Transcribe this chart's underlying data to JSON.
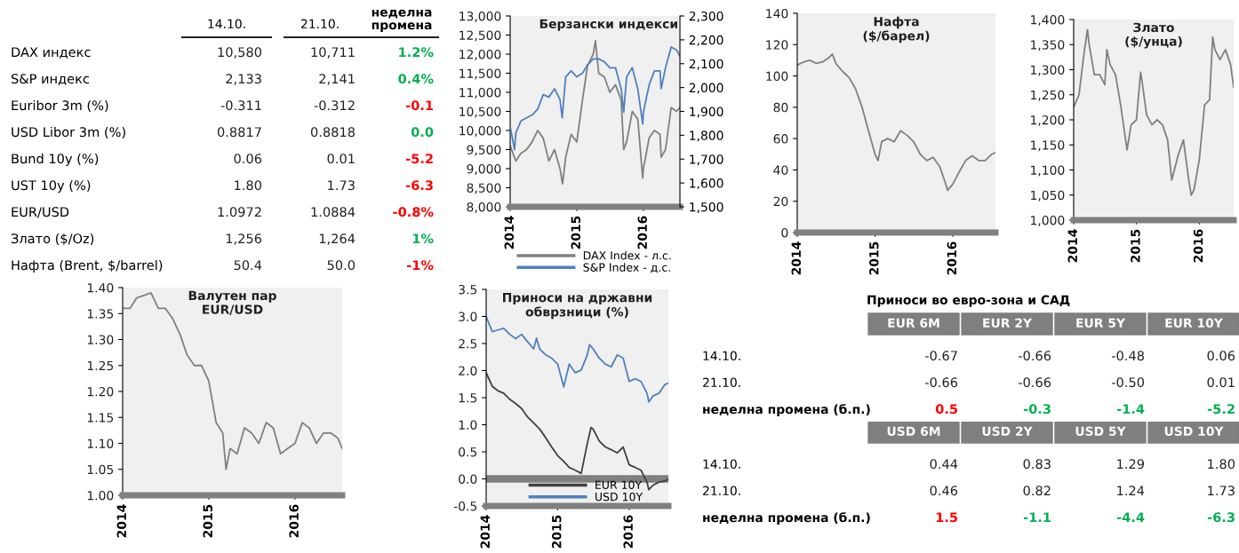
{
  "chart_data": [
    {
      "type": "other",
      "categories": [
        "14.10.",
        "21.10.",
        "неделна промена"
      ],
      "series": [
        {
          "name": "DAX индекс",
          "values": [
            10580,
            10711,
            1.2
          ],
          "value_labels": [
            "10,580",
            "10,711",
            "1.2%"
          ],
          "colors": [
            "#222222",
            "#222222",
            "#00b050"
          ]
        },
        {
          "name": "S&P индекс",
          "values": [
            2133,
            2141,
            0.4
          ],
          "value_labels": [
            "2,133",
            "2,141",
            "0.4%"
          ],
          "colors": [
            "#222222",
            "#222222",
            "#00b050"
          ]
        },
        {
          "name": "Euribor 3m (%)",
          "values": [
            -0.311,
            -0.312,
            -0.1
          ],
          "value_labels": [
            "-0.311",
            "-0.312",
            "-0.1"
          ],
          "colors": [
            "#222222",
            "#222222",
            "#ff0000"
          ]
        },
        {
          "name": "USD Libor 3m (%)",
          "values": [
            0.8817,
            0.8818,
            0.0
          ],
          "value_labels": [
            "0.8817",
            "0.8818",
            "0.0"
          ],
          "colors": [
            "#222222",
            "#222222",
            "#00b050"
          ]
        },
        {
          "name": "Bund 10y (%)",
          "values": [
            0.06,
            0.01,
            -5.2
          ],
          "value_labels": [
            "0.06",
            "0.01",
            "-5.2"
          ],
          "colors": [
            "#222222",
            "#222222",
            "#ff0000"
          ]
        },
        {
          "name": "UST 10y (%)",
          "values": [
            1.8,
            1.73,
            -6.3
          ],
          "value_labels": [
            "1.80",
            "1.73",
            "-6.3"
          ],
          "colors": [
            "#222222",
            "#222222",
            "#ff0000"
          ]
        },
        {
          "name": "EUR/USD",
          "values": [
            1.0972,
            1.0884,
            -0.8
          ],
          "value_labels": [
            "1.0972",
            "1.0884",
            "-0.8%"
          ],
          "colors": [
            "#222222",
            "#222222",
            "#ff0000"
          ]
        },
        {
          "name": "Злато ($/Oz)",
          "values": [
            1256,
            1264,
            1
          ],
          "value_labels": [
            "1,256",
            "1,264",
            "1%"
          ],
          "colors": [
            "#222222",
            "#222222",
            "#00b050"
          ]
        },
        {
          "name": "Нафта (Brent, $/barrel)",
          "values": [
            50.4,
            50.0,
            -1
          ],
          "value_labels": [
            "50.4",
            "50.0",
            "-1%"
          ],
          "colors": [
            "#222222",
            "#222222",
            "#ff0000"
          ]
        }
      ]
    },
    {
      "type": "line",
      "title": "Берзански индекси",
      "legend": "bottom",
      "xlim": [
        "2014-01-01",
        "2016-07-19"
      ],
      "xticks": [
        "2014",
        "2015",
        "2016"
      ],
      "ylim": [
        8000,
        13000
      ],
      "yticks": [
        {
          "value": 8000,
          "label": "8,000"
        },
        {
          "value": 8500,
          "label": "8,500"
        },
        {
          "value": 9000,
          "label": "9,000"
        },
        {
          "value": 9500,
          "label": "9,500"
        },
        {
          "value": 10000,
          "label": "10,000"
        },
        {
          "value": 10500,
          "label": "10,500"
        },
        {
          "value": 11000,
          "label": "11,000"
        },
        {
          "value": 11500,
          "label": "11,500"
        },
        {
          "value": 12000,
          "label": "12,000"
        },
        {
          "value": 12500,
          "label": "12,500"
        },
        {
          "value": 13000,
          "label": "13,000"
        }
      ],
      "y2lim": [
        1500,
        2300
      ],
      "y2ticks": [
        {
          "value": 1500,
          "label": "1,500"
        },
        {
          "value": 1600,
          "label": "1,600"
        },
        {
          "value": 1700,
          "label": "1,700"
        },
        {
          "value": 1800,
          "label": "1,800"
        },
        {
          "value": 1900,
          "label": "1,900"
        },
        {
          "value": 2000,
          "label": "2,000"
        },
        {
          "value": 2100,
          "label": "2,100"
        },
        {
          "value": 2200,
          "label": "2,200"
        },
        {
          "value": 2300,
          "label": "2,300"
        }
      ],
      "series": [
        {
          "name": "DAX Index - л.с.",
          "color": "#808080",
          "x": [
            "2014-01-01",
            "2014-02-01",
            "2014-03-01",
            "2014-04-01",
            "2014-05-01",
            "2014-06-01",
            "2014-07-01",
            "2014-08-01",
            "2014-09-01",
            "2014-10-01",
            "2014-10-15",
            "2014-11-01",
            "2014-12-01",
            "2015-01-01",
            "2015-02-01",
            "2015-03-01",
            "2015-04-01",
            "2015-04-13",
            "2015-05-01",
            "2015-06-01",
            "2015-07-01",
            "2015-08-01",
            "2015-09-01",
            "2015-09-15",
            "2015-10-01",
            "2015-11-01",
            "2015-12-01",
            "2015-12-28",
            "2016-01-01",
            "2016-02-01",
            "2016-03-01",
            "2016-04-01",
            "2016-04-07",
            "2016-05-01",
            "2016-06-01",
            "2016-07-01",
            "2016-07-19"
          ],
          "values": [
            9600,
            9200,
            9400,
            9500,
            9700,
            10000,
            9800,
            9200,
            9500,
            9000,
            8600,
            9300,
            9900,
            9700,
            10800,
            11700,
            12000,
            12350,
            11500,
            11400,
            11000,
            11200,
            10800,
            9500,
            9700,
            10500,
            10300,
            8750,
            9000,
            9800,
            10000,
            9900,
            9300,
            9500,
            10600,
            10500,
            10600
          ]
        },
        {
          "name": "S&P Index - д.с.",
          "color": "#4f81bd",
          "axis": "y2",
          "x": [
            "2014-01-01",
            "2014-01-25",
            "2014-02-01",
            "2014-03-01",
            "2014-04-01",
            "2014-05-01",
            "2014-06-01",
            "2014-07-01",
            "2014-08-01",
            "2014-09-01",
            "2014-10-01",
            "2014-10-13",
            "2014-11-01",
            "2014-12-01",
            "2015-01-01",
            "2015-02-01",
            "2015-03-01",
            "2015-04-01",
            "2015-05-01",
            "2015-06-01",
            "2015-07-01",
            "2015-08-01",
            "2015-09-01",
            "2015-09-15",
            "2015-10-01",
            "2015-11-01",
            "2015-12-01",
            "2015-12-28",
            "2016-01-01",
            "2016-02-01",
            "2016-03-01",
            "2016-04-01",
            "2016-04-07",
            "2016-05-01",
            "2016-06-01",
            "2016-07-01",
            "2016-07-19"
          ],
          "values": [
            1836,
            1740,
            1810,
            1860,
            1873,
            1885,
            1910,
            1970,
            1960,
            1995,
            1950,
            1873,
            2045,
            2070,
            2045,
            2060,
            2095,
            2120,
            2120,
            2108,
            2083,
            2083,
            1995,
            1897,
            2045,
            2083,
            1995,
            1847,
            1897,
            2010,
            2070,
            2070,
            1995,
            2083,
            2170,
            2157,
            2132
          ]
        }
      ]
    },
    {
      "type": "line",
      "title": "Нафта\n($/барел)",
      "xlim": [
        "2014-01-01",
        "2016-07-19"
      ],
      "xticks": [
        "2014",
        "2015",
        "2016"
      ],
      "ylim": [
        0,
        140
      ],
      "yticks": [
        0,
        20,
        40,
        60,
        80,
        100,
        120,
        140
      ],
      "series": [
        {
          "color": "#808080",
          "x": [
            "2014-01-01",
            "2014-02-01",
            "2014-03-01",
            "2014-04-01",
            "2014-05-01",
            "2014-06-01",
            "2014-06-15",
            "2014-07-01",
            "2014-08-01",
            "2014-09-01",
            "2014-10-01",
            "2014-11-01",
            "2014-12-01",
            "2015-01-01",
            "2015-01-15",
            "2015-02-01",
            "2015-03-01",
            "2015-04-01",
            "2015-05-01",
            "2015-06-01",
            "2015-07-01",
            "2015-08-01",
            "2015-09-01",
            "2015-10-01",
            "2015-11-01",
            "2015-12-01",
            "2015-12-07",
            "2016-01-01",
            "2016-02-01",
            "2016-03-01",
            "2016-04-01",
            "2016-05-01",
            "2016-06-01",
            "2016-07-01",
            "2016-07-19"
          ],
          "values": [
            107,
            109,
            110,
            108,
            109,
            112,
            114,
            108,
            103,
            99,
            92,
            80,
            65,
            50,
            46,
            58,
            60,
            58,
            65,
            62,
            58,
            50,
            46,
            48,
            42,
            30,
            27,
            31,
            39,
            46,
            49,
            46,
            46,
            50,
            51
          ]
        }
      ]
    },
    {
      "type": "line",
      "title": "Злато\n($/унца)",
      "xlim": [
        "2014-01-01",
        "2016-07-19"
      ],
      "xticks": [
        "2014",
        "2015",
        "2016"
      ],
      "ylim": [
        1000,
        1400
      ],
      "yticks": [
        {
          "value": 1000,
          "label": "1,000"
        },
        {
          "value": 1050,
          "label": "1,050"
        },
        {
          "value": 1100,
          "label": "1,100"
        },
        {
          "value": 1150,
          "label": "1,150"
        },
        {
          "value": 1200,
          "label": "1,200"
        },
        {
          "value": 1250,
          "label": "1,250"
        },
        {
          "value": 1300,
          "label": "1,300"
        },
        {
          "value": 1350,
          "label": "1,350"
        },
        {
          "value": 1400,
          "label": "1,400"
        }
      ],
      "series": [
        {
          "color": "#808080",
          "x": [
            "2014-01-01",
            "2014-02-01",
            "2014-03-01",
            "2014-03-22",
            "2014-04-01",
            "2014-05-01",
            "2014-06-01",
            "2014-07-01",
            "2014-07-13",
            "2014-08-01",
            "2014-09-01",
            "2014-10-01",
            "2014-11-07",
            "2014-12-01",
            "2015-01-01",
            "2015-01-25",
            "2015-02-01",
            "2015-03-01",
            "2015-04-01",
            "2015-05-01",
            "2015-06-01",
            "2015-07-01",
            "2015-07-25",
            "2015-09-01",
            "2015-10-01",
            "2015-11-01",
            "2015-11-15",
            "2015-12-01",
            "2016-01-01",
            "2016-02-01",
            "2016-03-01",
            "2016-03-19",
            "2016-04-01",
            "2016-05-01",
            "2016-06-01",
            "2016-07-01",
            "2016-07-19"
          ],
          "values": [
            1225,
            1250,
            1330,
            1380,
            1350,
            1290,
            1290,
            1270,
            1340,
            1310,
            1290,
            1230,
            1140,
            1190,
            1200,
            1295,
            1280,
            1210,
            1190,
            1200,
            1190,
            1160,
            1080,
            1130,
            1160,
            1080,
            1050,
            1060,
            1120,
            1230,
            1240,
            1365,
            1340,
            1320,
            1340,
            1310,
            1265
          ]
        }
      ]
    },
    {
      "type": "line",
      "title": "Валутен пар\nEUR/USD",
      "xlim": [
        "2014-01-01",
        "2016-07-19"
      ],
      "xticks": [
        "2014",
        "2015",
        "2016"
      ],
      "ylim": [
        1.0,
        1.4
      ],
      "yticks": [
        {
          "value": 1.0,
          "label": "1.00"
        },
        {
          "value": 1.05,
          "label": "1.05"
        },
        {
          "value": 1.1,
          "label": "1.10"
        },
        {
          "value": 1.15,
          "label": "1.15"
        },
        {
          "value": 1.2,
          "label": "1.20"
        },
        {
          "value": 1.25,
          "label": "1.25"
        },
        {
          "value": 1.3,
          "label": "1.30"
        },
        {
          "value": 1.35,
          "label": "1.35"
        },
        {
          "value": 1.4,
          "label": "1.40"
        }
      ],
      "series": [
        {
          "color": "#808080",
          "x": [
            "2014-01-01",
            "2014-02-01",
            "2014-03-01",
            "2014-04-01",
            "2014-05-01",
            "2014-06-01",
            "2014-07-01",
            "2014-08-01",
            "2014-09-01",
            "2014-10-01",
            "2014-11-01",
            "2014-12-01",
            "2015-01-01",
            "2015-02-01",
            "2015-03-01",
            "2015-03-15",
            "2015-04-01",
            "2015-05-01",
            "2015-06-01",
            "2015-07-01",
            "2015-08-01",
            "2015-09-01",
            "2015-10-01",
            "2015-11-01",
            "2015-12-01",
            "2016-01-01",
            "2016-02-01",
            "2016-03-01",
            "2016-04-01",
            "2016-05-01",
            "2016-06-01",
            "2016-07-01",
            "2016-07-19"
          ],
          "values": [
            1.36,
            1.36,
            1.38,
            1.385,
            1.39,
            1.36,
            1.36,
            1.34,
            1.31,
            1.27,
            1.25,
            1.25,
            1.22,
            1.14,
            1.12,
            1.05,
            1.09,
            1.08,
            1.13,
            1.12,
            1.1,
            1.14,
            1.13,
            1.08,
            1.09,
            1.1,
            1.14,
            1.13,
            1.1,
            1.12,
            1.12,
            1.11,
            1.09
          ]
        }
      ]
    },
    {
      "type": "line",
      "title": "Приноси на државни\nобврзници (%)",
      "legend": "bottom",
      "xlim": [
        "2014-01-01",
        "2016-07-19"
      ],
      "xticks": [
        "2014",
        "2015",
        "2016"
      ],
      "ylim": [
        -0.5,
        3.5
      ],
      "yticks": [
        {
          "value": -0.5,
          "label": "-0.5"
        },
        {
          "value": 0,
          "label": "0.0"
        },
        {
          "value": 0.5,
          "label": "0.5"
        },
        {
          "value": 1,
          "label": "1.0"
        },
        {
          "value": 1.5,
          "label": "1.5"
        },
        {
          "value": 2,
          "label": "2.0"
        },
        {
          "value": 2.5,
          "label": "2.5"
        },
        {
          "value": 3,
          "label": "3.0"
        },
        {
          "value": 3.5,
          "label": "3.5"
        }
      ],
      "ref_lines": [
        {
          "axis": "y",
          "value": 0,
          "color": "#808080"
        }
      ],
      "series": [
        {
          "name": "EUR 10Y",
          "color": "#404040",
          "x": [
            "2014-01-01",
            "2014-02-01",
            "2014-03-01",
            "2014-04-01",
            "2014-05-01",
            "2014-06-01",
            "2014-07-01",
            "2014-08-01",
            "2014-09-01",
            "2014-10-01",
            "2014-11-01",
            "2014-12-01",
            "2015-01-01",
            "2015-02-01",
            "2015-03-01",
            "2015-04-01",
            "2015-05-01",
            "2015-06-01",
            "2015-06-20",
            "2015-07-01",
            "2015-08-01",
            "2015-09-01",
            "2015-10-01",
            "2015-11-01",
            "2015-12-01",
            "2016-01-01",
            "2016-02-01",
            "2016-03-01",
            "2016-04-01",
            "2016-04-10",
            "2016-05-01",
            "2016-06-01",
            "2016-07-01",
            "2016-07-19"
          ],
          "values": [
            1.96,
            1.71,
            1.63,
            1.58,
            1.47,
            1.39,
            1.3,
            1.14,
            1.03,
            0.92,
            0.76,
            0.59,
            0.43,
            0.32,
            0.21,
            0.16,
            0.1,
            0.65,
            0.95,
            0.92,
            0.7,
            0.59,
            0.54,
            0.48,
            0.59,
            0.26,
            0.21,
            0.16,
            -0.06,
            -0.2,
            -0.12,
            -0.06,
            -0.04,
            -0.01
          ]
        },
        {
          "name": "USD 10Y",
          "color": "#4f81bd",
          "x": [
            "2014-01-01",
            "2014-02-01",
            "2014-03-01",
            "2014-04-01",
            "2014-05-01",
            "2014-06-01",
            "2014-07-01",
            "2014-08-01",
            "2014-09-01",
            "2014-09-15",
            "2014-10-01",
            "2014-11-01",
            "2014-12-01",
            "2015-01-01",
            "2015-02-01",
            "2015-03-01",
            "2015-04-01",
            "2015-05-01",
            "2015-06-01",
            "2015-06-13",
            "2015-07-01",
            "2015-08-01",
            "2015-09-01",
            "2015-10-01",
            "2015-11-01",
            "2015-12-01",
            "2016-01-01",
            "2016-02-01",
            "2016-03-01",
            "2016-04-01",
            "2016-04-10",
            "2016-05-01",
            "2016-06-01",
            "2016-07-01",
            "2016-07-19"
          ],
          "values": [
            3.0,
            2.72,
            2.75,
            2.78,
            2.67,
            2.59,
            2.67,
            2.53,
            2.4,
            2.6,
            2.4,
            2.29,
            2.23,
            2.12,
            1.7,
            2.12,
            1.96,
            2.01,
            2.29,
            2.48,
            2.4,
            2.23,
            2.12,
            2.07,
            2.29,
            2.23,
            1.8,
            1.85,
            1.8,
            1.58,
            1.42,
            1.53,
            1.58,
            1.74,
            1.77
          ]
        }
      ]
    },
    {
      "type": "other",
      "title": "Приноси во евро-зона и САД",
      "categories": [
        "EUR 6M",
        "EUR 2Y",
        "EUR 5Y",
        "EUR 10Y"
      ],
      "series": [
        {
          "name": "14.10.",
          "values": [
            -0.67,
            -0.66,
            -0.48,
            0.06
          ],
          "value_labels": [
            "-0.67",
            "-0.66",
            "-0.48",
            "0.06"
          ]
        },
        {
          "name": "21.10.",
          "values": [
            -0.66,
            -0.66,
            -0.5,
            0.01
          ],
          "value_labels": [
            "-0.66",
            "-0.66",
            "-0.50",
            "0.01"
          ]
        },
        {
          "name": "неделна промена (б.п.)",
          "values": [
            0.5,
            -0.3,
            -1.4,
            -5.2
          ],
          "value_labels": [
            "0.5",
            "-0.3",
            "-1.4",
            "-5.2"
          ],
          "colors": [
            "#ff0000",
            "#00b050",
            "#00b050",
            "#00b050"
          ]
        }
      ]
    },
    {
      "type": "other",
      "categories": [
        "USD 6M",
        "USD 2Y",
        "USD 5Y",
        "USD 10Y"
      ],
      "series": [
        {
          "name": "14.10.",
          "values": [
            0.44,
            0.83,
            1.29,
            1.8
          ],
          "value_labels": [
            "0.44",
            "0.83",
            "1.29",
            "1.80"
          ]
        },
        {
          "name": "21.10.",
          "values": [
            0.46,
            0.82,
            1.24,
            1.73
          ],
          "value_labels": [
            "0.46",
            "0.82",
            "1.24",
            "1.73"
          ]
        },
        {
          "name": "неделна промена (б.п.)",
          "values": [
            1.5,
            -1.1,
            -4.4,
            -6.3
          ],
          "value_labels": [
            "1.5",
            "-1.1",
            "-4.4",
            "-6.3"
          ],
          "colors": [
            "#ff0000",
            "#00b050",
            "#00b050",
            "#00b050"
          ]
        }
      ]
    }
  ]
}
